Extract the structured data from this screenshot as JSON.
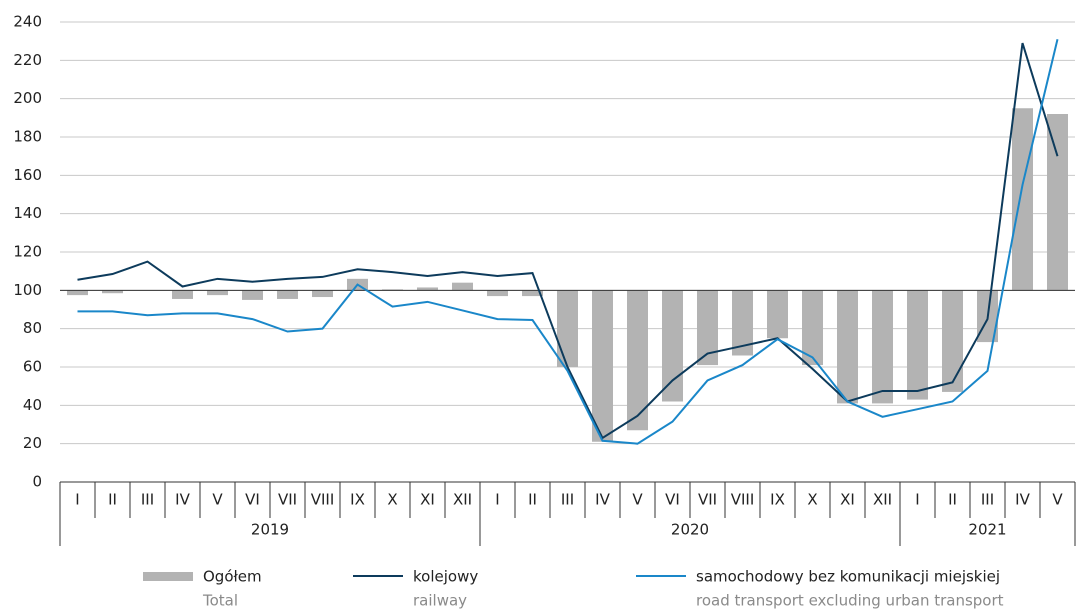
{
  "chart_data": {
    "type": "bar_line",
    "categories": [
      "I",
      "II",
      "III",
      "IV",
      "V",
      "VI",
      "VII",
      "VIII",
      "IX",
      "X",
      "XI",
      "XII",
      "I",
      "II",
      "III",
      "IV",
      "V",
      "VI",
      "VII",
      "VIII",
      "IX",
      "X",
      "XI",
      "XII",
      "I",
      "II",
      "III",
      "IV",
      "V"
    ],
    "year_groups": [
      {
        "label": "2019",
        "span": 12
      },
      {
        "label": "2020",
        "span": 12
      },
      {
        "label": "2021",
        "span": 5
      }
    ],
    "bar_baseline": 100,
    "series": [
      {
        "name": "Ogółem",
        "name_en": "Total",
        "kind": "bar",
        "color": "#b3b3b3",
        "values": [
          97.5,
          98.5,
          100,
          95.5,
          97.5,
          95,
          95.5,
          96.5,
          106,
          100.5,
          101.5,
          104,
          97,
          97,
          60,
          21,
          27,
          42,
          61,
          66,
          75,
          61,
          41,
          41,
          43,
          47,
          73,
          195,
          192
        ]
      },
      {
        "name": "kolejowy",
        "name_en": "railway",
        "kind": "line",
        "color": "#0d3b5c",
        "values": [
          105.5,
          108.5,
          115,
          102,
          106,
          104.5,
          106,
          107,
          111,
          109.5,
          107.5,
          109.5,
          107.5,
          109,
          60,
          23,
          34.5,
          53,
          67,
          71,
          75,
          59,
          42,
          47.5,
          47.5,
          52,
          85,
          229,
          170
        ]
      },
      {
        "name": "samochodowy bez komunikacji miejskiej",
        "name_en": "road transport excluding urban transport",
        "kind": "line",
        "color": "#1a87c9",
        "values": [
          89,
          89,
          87,
          88,
          88,
          85,
          78.5,
          80,
          103,
          91.5,
          94,
          89.5,
          85,
          84.5,
          58,
          21.5,
          20,
          31.5,
          53,
          61,
          74.5,
          65,
          42,
          34,
          38,
          42,
          58,
          155,
          231
        ]
      }
    ],
    "ylim": [
      0,
      240
    ],
    "yticks": [
      0,
      20,
      40,
      60,
      80,
      100,
      120,
      140,
      160,
      180,
      200,
      220,
      240
    ],
    "grid": true
  }
}
